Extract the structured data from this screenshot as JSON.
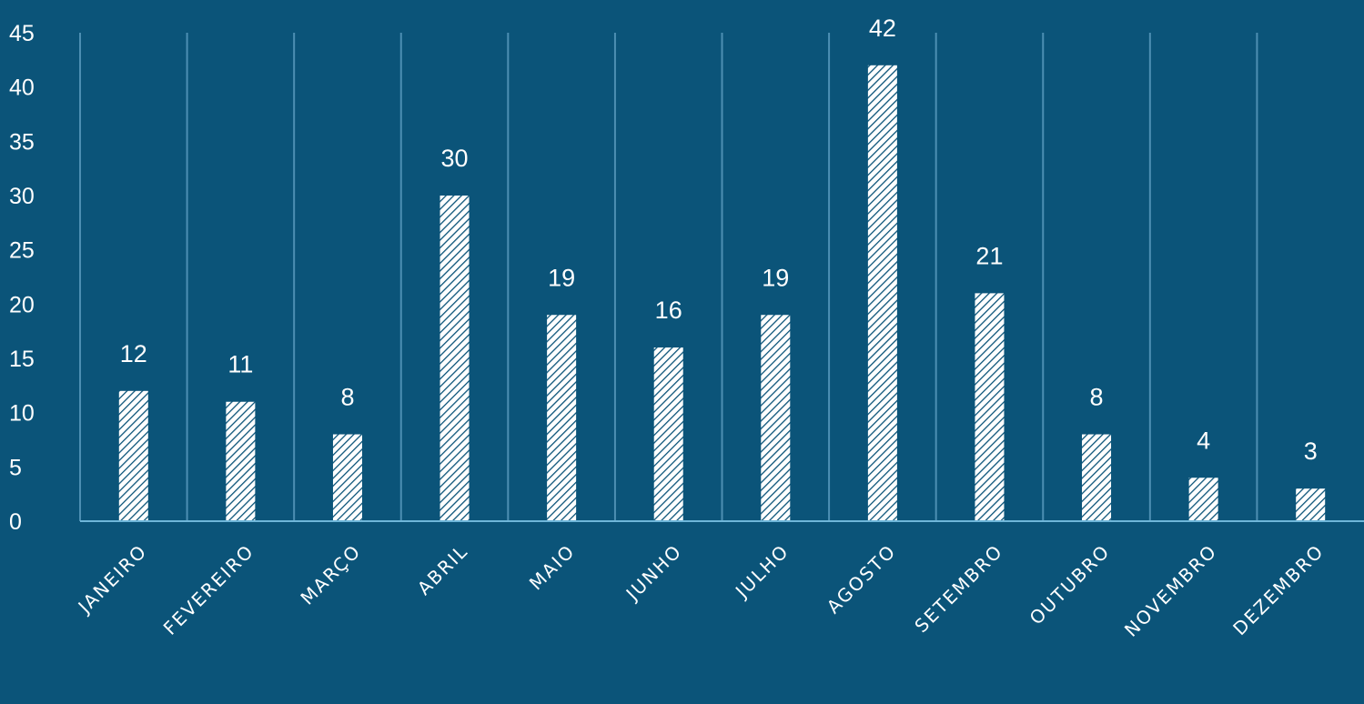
{
  "chart_data": {
    "type": "bar",
    "categories": [
      "JANEIRO",
      "FEVEREIRO",
      "MARÇO",
      "ABRIL",
      "MAIO",
      "JUNHO",
      "JULHO",
      "AGOSTO",
      "SETEMBRO",
      "OUTUBRO",
      "NOVEMBRO",
      "DEZEMBRO"
    ],
    "values": [
      12,
      11,
      8,
      30,
      19,
      16,
      19,
      42,
      21,
      8,
      4,
      3
    ],
    "y_ticks": [
      "0",
      "5",
      "10",
      "15",
      "20",
      "25",
      "30",
      "35",
      "40",
      "45"
    ],
    "ylim": [
      0,
      45
    ],
    "title": "",
    "xlabel": "",
    "ylabel": "",
    "grid": "vertical category separators",
    "legend": "none",
    "data_labels": true,
    "bar_pattern": "diagonal hatch"
  },
  "colors": {
    "background": "#0b5479",
    "bar_fill": "#ffffff",
    "hatch": "#0b5479",
    "grid": "#4d8fb3",
    "axis": "#6fb6d9",
    "text": "#ffffff"
  }
}
